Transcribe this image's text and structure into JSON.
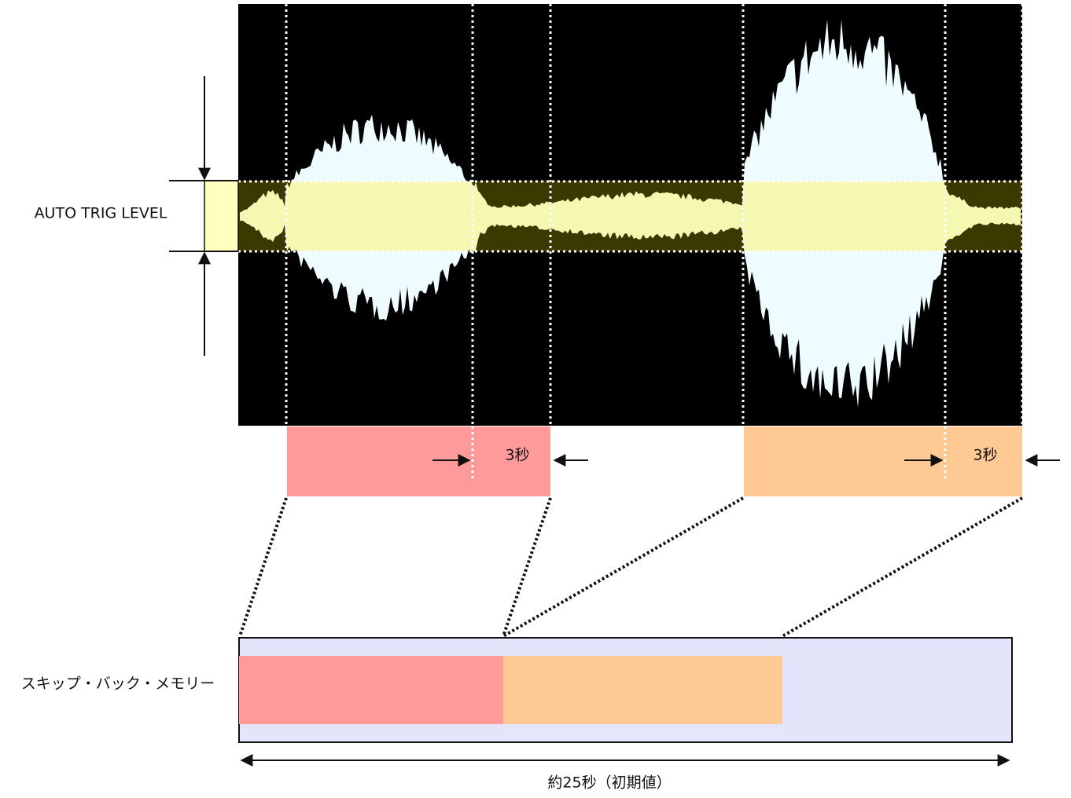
{
  "labels": {
    "auto_trig_level": "AUTO TRIG LEVEL",
    "release_1": "3秒",
    "release_2": "3秒",
    "memory": "スキップ・バック・メモリー",
    "duration": "約25秒（初期値）"
  }
}
